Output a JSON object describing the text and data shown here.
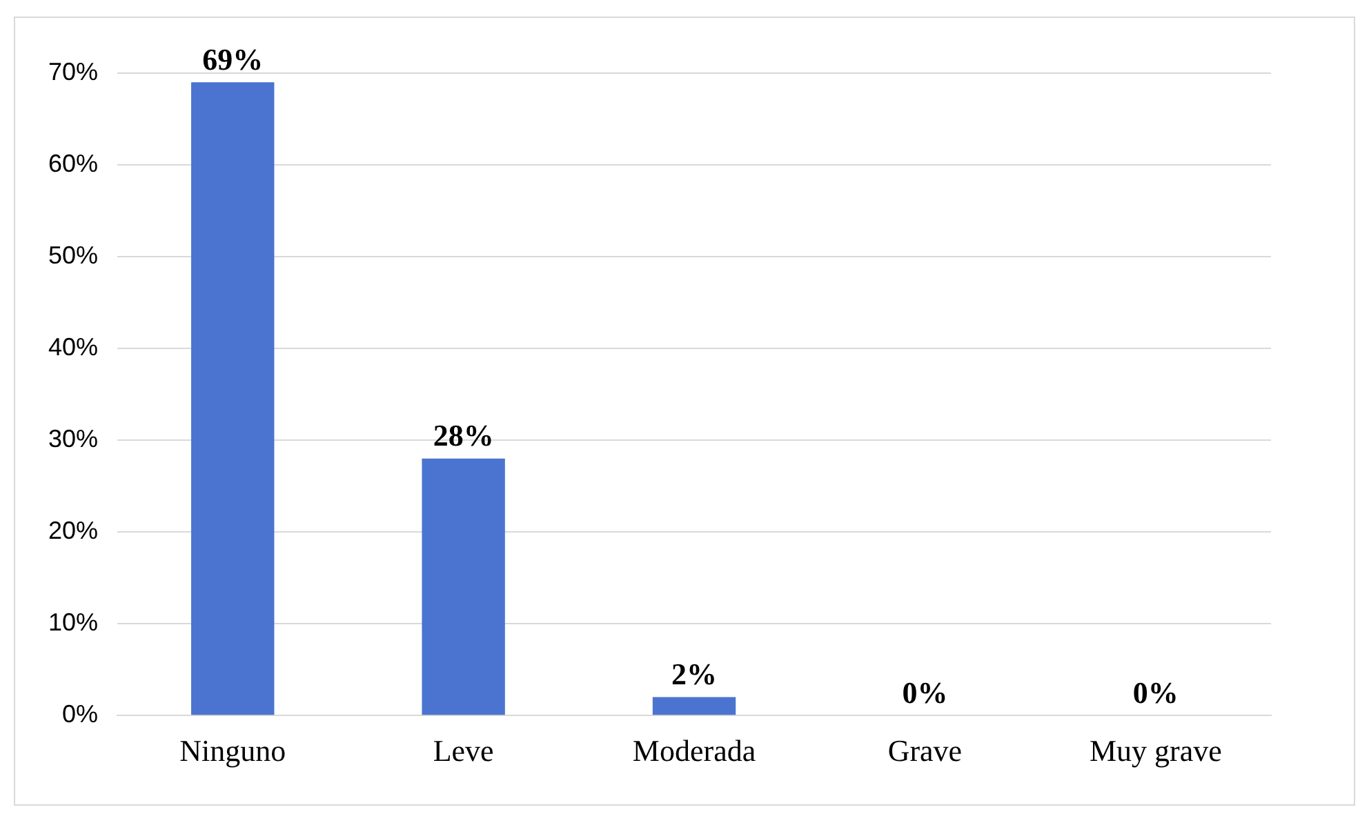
{
  "chart_data": {
    "type": "bar",
    "categories": [
      "Ninguno",
      "Leve",
      "Moderada",
      "Grave",
      "Muy grave"
    ],
    "values": [
      69,
      28,
      2,
      0,
      0
    ],
    "colors": [
      "#4a74cf",
      "#4a74cf",
      "#4a74cf",
      "#0f1f3d",
      "#0f1f3d"
    ],
    "value_labels": [
      "69%",
      "28%",
      "2%",
      "0%",
      "0%"
    ],
    "ylim": [
      0,
      70
    ],
    "yticks": [
      {
        "value": 0,
        "label": "0%"
      },
      {
        "value": 10,
        "label": "10%"
      },
      {
        "value": 20,
        "label": "20%"
      },
      {
        "value": 30,
        "label": "30%"
      },
      {
        "value": 40,
        "label": "40%"
      },
      {
        "value": 50,
        "label": "50%"
      },
      {
        "value": 60,
        "label": "60%"
      },
      {
        "value": 70,
        "label": "70%"
      }
    ],
    "grid": "y",
    "legend": false
  }
}
